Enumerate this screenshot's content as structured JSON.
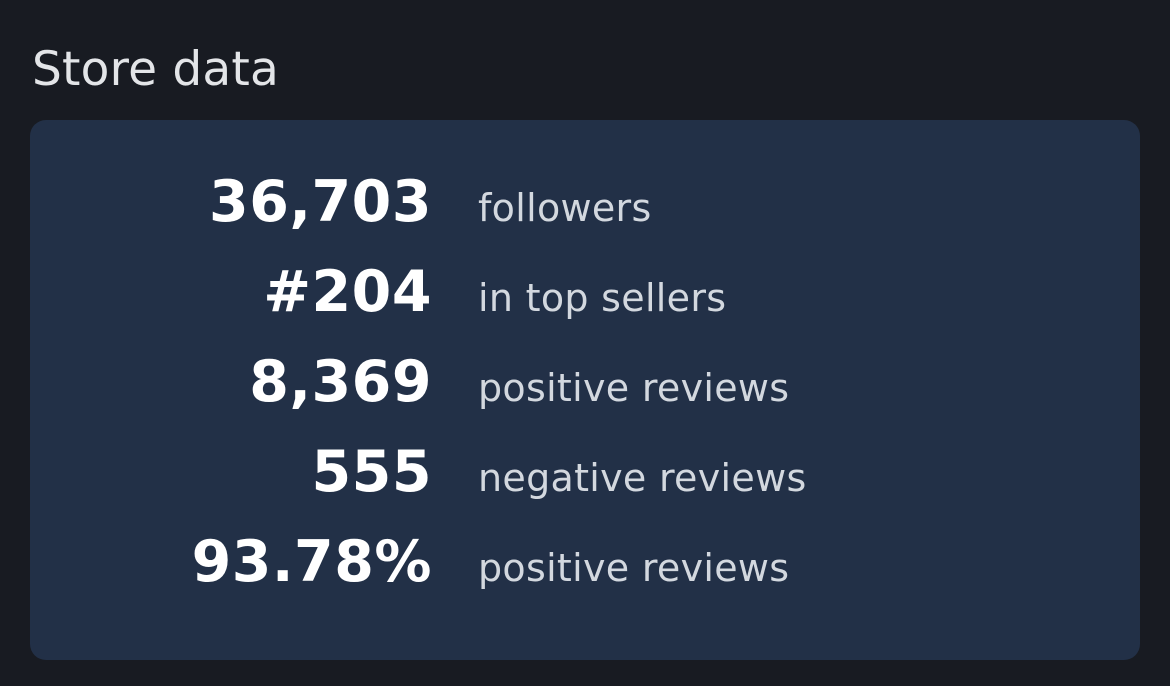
{
  "section": {
    "title": "Store data"
  },
  "stats": [
    {
      "value": "36,703",
      "label": "followers"
    },
    {
      "value": "#204",
      "label": "in top sellers"
    },
    {
      "value": "8,369",
      "label": "positive reviews"
    },
    {
      "value": "555",
      "label": "negative reviews"
    },
    {
      "value": "93.78%",
      "label": "positive reviews"
    }
  ],
  "colors": {
    "page_background": "#181b22",
    "card_background": "#223047",
    "value_text": "#ffffff",
    "label_text": "#d3d8df",
    "title_text": "#e3e5e8"
  }
}
